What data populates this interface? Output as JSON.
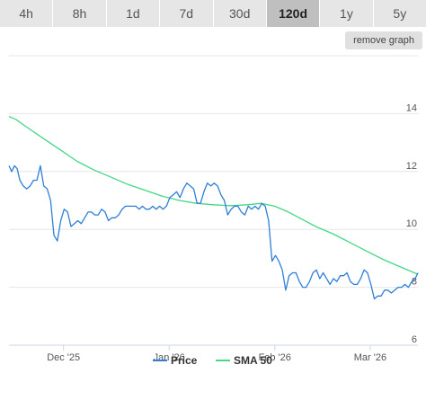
{
  "tabs": [
    {
      "label": "4h"
    },
    {
      "label": "8h"
    },
    {
      "label": "1d"
    },
    {
      "label": "7d"
    },
    {
      "label": "30d"
    },
    {
      "label": "120d",
      "active": true
    },
    {
      "label": "1y"
    },
    {
      "label": "5y"
    }
  ],
  "remove_graph_label": "remove graph",
  "chart_data": {
    "type": "line",
    "ylim": [
      6,
      16
    ],
    "y_ticks": [
      6,
      8,
      10,
      12,
      14
    ],
    "x_ticks": [
      {
        "label": "Dec '25",
        "day": 16
      },
      {
        "label": "Jan '26",
        "day": 47
      },
      {
        "label": "Feb '26",
        "day": 78
      },
      {
        "label": "Mar '26",
        "day": 106
      }
    ],
    "x_range_days": [
      0,
      120
    ],
    "grid": true,
    "legend_position": "bottom-center",
    "series": [
      {
        "name": "Price",
        "color": "#2f7ed8",
        "points": [
          [
            0,
            12.2
          ],
          [
            0.8,
            12.0
          ],
          [
            1.6,
            12.2
          ],
          [
            2.4,
            12.1
          ],
          [
            3.2,
            11.7
          ],
          [
            4.2,
            11.5
          ],
          [
            5.2,
            11.4
          ],
          [
            6.2,
            11.5
          ],
          [
            7.2,
            11.7
          ],
          [
            8.2,
            11.7
          ],
          [
            9.2,
            12.2
          ],
          [
            10.2,
            11.5
          ],
          [
            11.2,
            11.4
          ],
          [
            12.2,
            11.0
          ],
          [
            13.2,
            9.8
          ],
          [
            14.2,
            9.6
          ],
          [
            15.2,
            10.3
          ],
          [
            16.2,
            10.7
          ],
          [
            17.2,
            10.6
          ],
          [
            18.2,
            10.1
          ],
          [
            19.2,
            10.2
          ],
          [
            20.2,
            10.3
          ],
          [
            21.2,
            10.2
          ],
          [
            22.2,
            10.4
          ],
          [
            23.2,
            10.6
          ],
          [
            24.2,
            10.6
          ],
          [
            25.2,
            10.5
          ],
          [
            26.2,
            10.5
          ],
          [
            27.2,
            10.7
          ],
          [
            28.2,
            10.6
          ],
          [
            29.2,
            10.3
          ],
          [
            30.2,
            10.4
          ],
          [
            31.2,
            10.4
          ],
          [
            32.2,
            10.5
          ],
          [
            33.2,
            10.7
          ],
          [
            34.2,
            10.8
          ],
          [
            35.2,
            10.8
          ],
          [
            36.2,
            10.8
          ],
          [
            37.2,
            10.8
          ],
          [
            38.2,
            10.7
          ],
          [
            39.2,
            10.8
          ],
          [
            40.2,
            10.7
          ],
          [
            41.2,
            10.7
          ],
          [
            42.2,
            10.8
          ],
          [
            43.2,
            10.7
          ],
          [
            44.2,
            10.8
          ],
          [
            45.2,
            10.7
          ],
          [
            46.2,
            10.8
          ],
          [
            47.2,
            11.1
          ],
          [
            48.2,
            11.2
          ],
          [
            49.2,
            11.3
          ],
          [
            50.2,
            11.1
          ],
          [
            51.2,
            11.4
          ],
          [
            52.2,
            11.6
          ],
          [
            53.2,
            11.5
          ],
          [
            54.2,
            11.4
          ],
          [
            55.2,
            10.9
          ],
          [
            56.2,
            10.9
          ],
          [
            57.2,
            11.3
          ],
          [
            58.2,
            11.6
          ],
          [
            59.2,
            11.5
          ],
          [
            60.2,
            11.6
          ],
          [
            61.2,
            11.5
          ],
          [
            62.2,
            11.2
          ],
          [
            63.2,
            11.0
          ],
          [
            64.2,
            10.5
          ],
          [
            65.2,
            10.7
          ],
          [
            66.2,
            10.8
          ],
          [
            67.2,
            10.8
          ],
          [
            68.2,
            10.6
          ],
          [
            69.2,
            10.5
          ],
          [
            70.2,
            10.8
          ],
          [
            71.2,
            10.7
          ],
          [
            72.2,
            10.8
          ],
          [
            73.2,
            10.7
          ],
          [
            74.2,
            10.9
          ],
          [
            75.2,
            10.8
          ],
          [
            76.2,
            10.3
          ],
          [
            77.2,
            8.9
          ],
          [
            78.2,
            9.1
          ],
          [
            79.2,
            8.9
          ],
          [
            80.2,
            8.6
          ],
          [
            81.2,
            7.9
          ],
          [
            82.2,
            8.4
          ],
          [
            83.2,
            8.5
          ],
          [
            84.2,
            8.5
          ],
          [
            85.2,
            8.2
          ],
          [
            86.2,
            8.0
          ],
          [
            87.2,
            8.0
          ],
          [
            88.2,
            8.2
          ],
          [
            89.2,
            8.5
          ],
          [
            90.2,
            8.6
          ],
          [
            91.2,
            8.3
          ],
          [
            92.2,
            8.5
          ],
          [
            93.2,
            8.3
          ],
          [
            94.2,
            8.1
          ],
          [
            95.2,
            8.3
          ],
          [
            96.2,
            8.2
          ],
          [
            97.2,
            8.4
          ],
          [
            98.2,
            8.4
          ],
          [
            99.2,
            8.5
          ],
          [
            100.2,
            8.2
          ],
          [
            101.2,
            8.1
          ],
          [
            102.2,
            8.1
          ],
          [
            103.2,
            8.3
          ],
          [
            104.2,
            8.6
          ],
          [
            105.2,
            8.5
          ],
          [
            106.2,
            8.1
          ],
          [
            107.2,
            7.6
          ],
          [
            108.2,
            7.7
          ],
          [
            109.2,
            7.7
          ],
          [
            110.2,
            7.9
          ],
          [
            111.2,
            7.9
          ],
          [
            112.2,
            7.8
          ],
          [
            113.2,
            7.9
          ],
          [
            114.2,
            8.0
          ],
          [
            115.2,
            8.0
          ],
          [
            116.2,
            8.1
          ],
          [
            117.2,
            8.0
          ],
          [
            118.2,
            8.2
          ],
          [
            119.2,
            8.3
          ],
          [
            120,
            8.5
          ]
        ]
      },
      {
        "name": "SMA 50",
        "color": "#43d787",
        "points": [
          [
            0,
            13.9
          ],
          [
            2,
            13.8
          ],
          [
            5,
            13.55
          ],
          [
            10,
            13.15
          ],
          [
            15,
            12.75
          ],
          [
            20,
            12.35
          ],
          [
            25,
            12.05
          ],
          [
            30,
            11.8
          ],
          [
            35,
            11.55
          ],
          [
            40,
            11.35
          ],
          [
            45,
            11.15
          ],
          [
            50,
            11.0
          ],
          [
            55,
            10.9
          ],
          [
            60,
            10.85
          ],
          [
            65,
            10.82
          ],
          [
            70,
            10.85
          ],
          [
            74,
            10.9
          ],
          [
            78,
            10.8
          ],
          [
            82,
            10.6
          ],
          [
            86,
            10.35
          ],
          [
            90,
            10.1
          ],
          [
            95,
            9.85
          ],
          [
            100,
            9.55
          ],
          [
            105,
            9.25
          ],
          [
            110,
            8.95
          ],
          [
            115,
            8.7
          ],
          [
            120,
            8.45
          ]
        ]
      }
    ]
  }
}
